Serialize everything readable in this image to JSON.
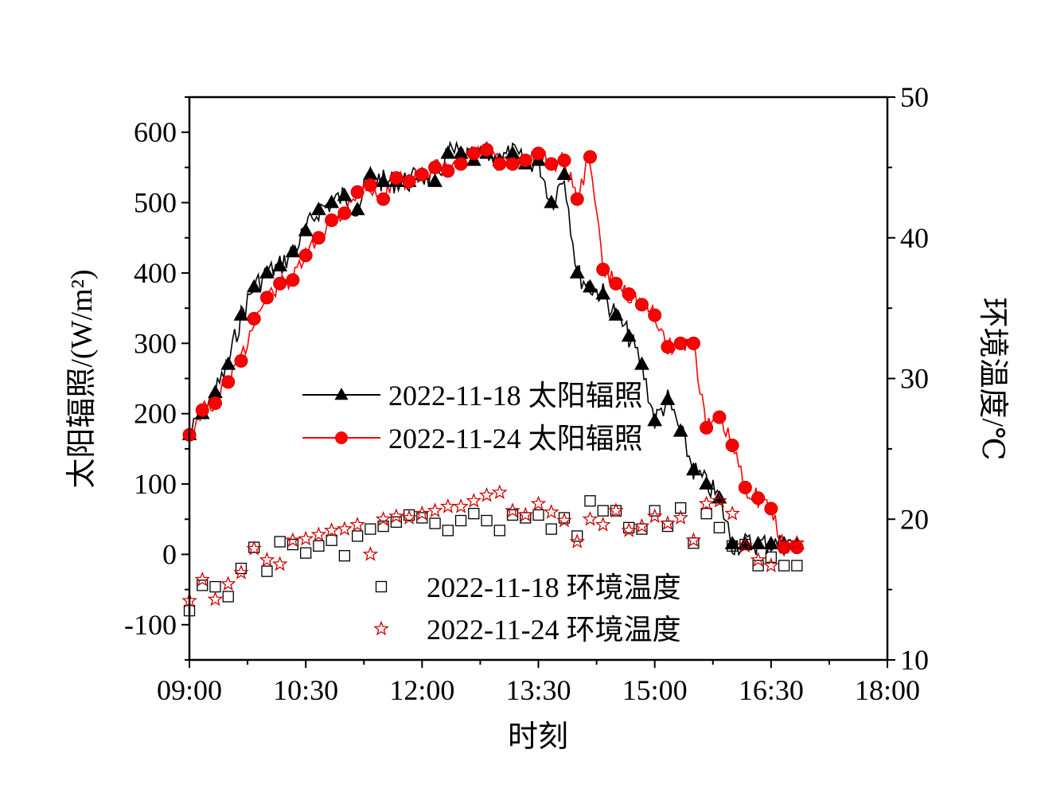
{
  "chart_data": {
    "type": "line",
    "xlabel": "时刻",
    "ylabel_left": "太阳辐照/(W/m²)",
    "ylabel_right": "环境温度/℃",
    "x_ticks": [
      "09:00",
      "10:30",
      "12:00",
      "13:30",
      "15:00",
      "16:30",
      "18:00"
    ],
    "xlim": [
      "09:00",
      "18:00"
    ],
    "ylim_left": [
      -150,
      650
    ],
    "y_ticks_left": [
      -100,
      0,
      100,
      200,
      300,
      400,
      500,
      600
    ],
    "ylim_right": [
      10,
      50
    ],
    "y_ticks_right": [
      10,
      20,
      30,
      40,
      50
    ],
    "grid": false,
    "legend": [
      {
        "label": "2022-11-18 太阳辐照",
        "color": "#000000",
        "marker": "triangle",
        "line": true
      },
      {
        "label": "2022-11-24 太阳辐照",
        "color": "#ff0000",
        "marker": "circle",
        "line": true
      },
      {
        "label": "2022-11-18 环境温度",
        "color": "#000000",
        "marker": "square-open",
        "line": false
      },
      {
        "label": "2022-11-24 环境温度",
        "color": "#cc0000",
        "marker": "star-open",
        "line": false
      }
    ],
    "series": [
      {
        "name": "2022-11-18 太阳辐照",
        "axis": "left",
        "x": [
          "09:00",
          "09:10",
          "09:20",
          "09:30",
          "09:40",
          "09:50",
          "10:00",
          "10:10",
          "10:20",
          "10:30",
          "10:40",
          "10:50",
          "11:00",
          "11:10",
          "11:20",
          "11:30",
          "11:40",
          "11:50",
          "12:00",
          "12:10",
          "12:20",
          "12:30",
          "12:40",
          "12:50",
          "13:00",
          "13:10",
          "13:20",
          "13:30",
          "13:40",
          "13:50",
          "14:00",
          "14:10",
          "14:20",
          "14:30",
          "14:40",
          "14:50",
          "15:00",
          "15:10",
          "15:20",
          "15:30",
          "15:40",
          "15:50",
          "16:00",
          "16:10",
          "16:20",
          "16:30",
          "16:40",
          "16:50"
        ],
        "values": [
          170,
          200,
          230,
          270,
          340,
          380,
          400,
          410,
          430,
          460,
          490,
          500,
          510,
          490,
          540,
          530,
          530,
          530,
          540,
          530,
          570,
          570,
          560,
          570,
          560,
          570,
          555,
          560,
          500,
          540,
          400,
          380,
          370,
          340,
          310,
          270,
          190,
          220,
          175,
          120,
          100,
          80,
          15,
          15,
          15,
          15,
          15,
          15
        ]
      },
      {
        "name": "2022-11-24 太阳辐照",
        "axis": "left",
        "x": [
          "09:00",
          "09:10",
          "09:20",
          "09:30",
          "09:40",
          "09:50",
          "10:00",
          "10:10",
          "10:20",
          "10:30",
          "10:40",
          "10:50",
          "11:00",
          "11:10",
          "11:20",
          "11:30",
          "11:40",
          "11:50",
          "12:00",
          "12:10",
          "12:20",
          "12:30",
          "12:40",
          "12:50",
          "13:00",
          "13:10",
          "13:20",
          "13:30",
          "13:40",
          "13:50",
          "14:00",
          "14:10",
          "14:20",
          "14:30",
          "14:40",
          "14:50",
          "15:00",
          "15:10",
          "15:20",
          "15:30",
          "15:40",
          "15:50",
          "16:00",
          "16:10",
          "16:20",
          "16:30",
          "16:40",
          "16:50"
        ],
        "values": [
          170,
          205,
          215,
          245,
          275,
          335,
          365,
          385,
          390,
          425,
          450,
          475,
          485,
          515,
          525,
          505,
          535,
          530,
          540,
          550,
          545,
          555,
          570,
          575,
          555,
          555,
          560,
          570,
          555,
          560,
          505,
          565,
          405,
          385,
          370,
          355,
          340,
          295,
          300,
          300,
          180,
          195,
          155,
          95,
          80,
          65,
          10,
          10
        ]
      },
      {
        "name": "2022-11-18 环境温度",
        "axis": "right",
        "x": [
          "09:00",
          "09:10",
          "09:20",
          "09:30",
          "09:40",
          "09:50",
          "10:00",
          "10:10",
          "10:20",
          "10:30",
          "10:40",
          "10:50",
          "11:00",
          "11:10",
          "11:20",
          "11:30",
          "11:40",
          "11:50",
          "12:00",
          "12:10",
          "12:20",
          "12:30",
          "12:40",
          "12:50",
          "13:00",
          "13:10",
          "13:20",
          "13:30",
          "13:40",
          "13:50",
          "14:00",
          "14:10",
          "14:20",
          "14:30",
          "14:40",
          "14:50",
          "15:00",
          "15:10",
          "15:20",
          "15:30",
          "15:40",
          "15:50",
          "16:00",
          "16:10",
          "16:20",
          "16:30",
          "16:40",
          "16:50"
        ],
        "values": [
          13.5,
          15.3,
          15.2,
          14.5,
          16.5,
          18.0,
          16.3,
          18.4,
          18.2,
          17.6,
          18.1,
          18.5,
          17.4,
          18.8,
          19.3,
          19.5,
          19.8,
          20.3,
          20.1,
          19.7,
          19.2,
          19.9,
          20.4,
          19.9,
          19.2,
          20.3,
          20.1,
          20.3,
          19.3,
          20.1,
          18.8,
          21.3,
          20.6,
          20.6,
          19.4,
          19.3,
          20.6,
          19.5,
          20.8,
          18.3,
          20.4,
          19.4,
          18.1,
          18.2,
          16.7,
          17.3,
          16.7,
          16.7
        ]
      },
      {
        "name": "2022-11-24 环境温度",
        "axis": "right",
        "x": [
          "09:00",
          "09:10",
          "09:20",
          "09:30",
          "09:40",
          "09:50",
          "10:00",
          "10:10",
          "10:20",
          "10:30",
          "10:40",
          "10:50",
          "11:00",
          "11:10",
          "11:20",
          "11:30",
          "11:40",
          "11:50",
          "12:00",
          "12:10",
          "12:20",
          "12:30",
          "12:40",
          "12:50",
          "13:00",
          "13:10",
          "13:20",
          "13:30",
          "13:40",
          "13:50",
          "14:00",
          "14:10",
          "14:20",
          "14:30",
          "14:40",
          "14:50",
          "15:00",
          "15:10",
          "15:20",
          "15:30",
          "15:40",
          "15:50",
          "16:00",
          "16:10",
          "16:20",
          "16:30",
          "16:40",
          "16:50"
        ],
        "values": [
          14.2,
          15.7,
          14.3,
          15.4,
          16.2,
          17.9,
          17.1,
          16.8,
          18.5,
          18.6,
          18.9,
          19.2,
          19.3,
          19.6,
          17.5,
          20.0,
          20.2,
          20.1,
          20.4,
          20.6,
          20.9,
          20.9,
          21.3,
          21.7,
          21.9,
          20.6,
          20.3,
          21.1,
          20.5,
          19.9,
          18.4,
          20.0,
          19.6,
          20.6,
          19.2,
          19.5,
          20.2,
          19.7,
          20.1,
          18.5,
          21.1,
          21.3,
          20.4,
          18.1,
          17.1,
          16.7,
          18.0,
          18.3
        ]
      }
    ]
  }
}
